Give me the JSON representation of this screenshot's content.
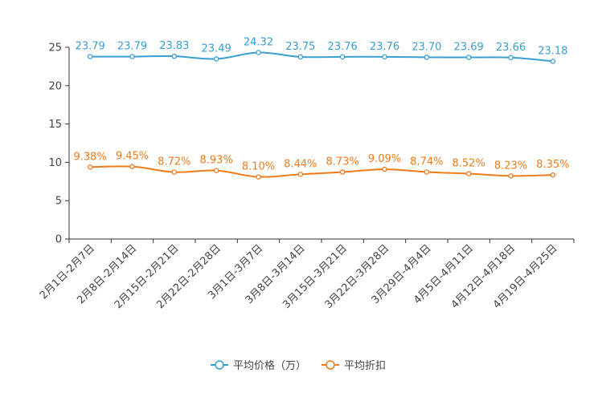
{
  "chart_data": {
    "type": "line",
    "categories": [
      "2月1日-2月7日",
      "2月8日-2月14日",
      "2月15日-2月21日",
      "2月22日-2月28日",
      "3月1日-3月7日",
      "3月8日-3月14日",
      "3月15日-3月21日",
      "3月22日-3月28日",
      "3月29日-4月4日",
      "4月5日-4月11日",
      "4月12日-4月18日",
      "4月19日-4月25日"
    ],
    "series": [
      {
        "name": "平均价格（万）",
        "color": "#3a9fd1",
        "values": [
          23.79,
          23.79,
          23.83,
          23.49,
          24.32,
          23.75,
          23.76,
          23.76,
          23.7,
          23.69,
          23.66,
          23.18
        ],
        "labels": [
          "23.79",
          "23.79",
          "23.83",
          "23.49",
          "24.32",
          "23.75",
          "23.76",
          "23.76",
          "23.70",
          "23.69",
          "23.66",
          "23.18"
        ]
      },
      {
        "name": "平均折扣",
        "color": "#f07b1b",
        "values": [
          9.38,
          9.45,
          8.72,
          8.93,
          8.1,
          8.44,
          8.73,
          9.09,
          8.74,
          8.52,
          8.23,
          8.35
        ],
        "labels": [
          "9.38%",
          "9.45%",
          "8.72%",
          "8.93%",
          "8.10%",
          "8.44%",
          "8.73%",
          "9.09%",
          "8.74%",
          "8.52%",
          "8.23%",
          "8.35%"
        ]
      }
    ],
    "ylim": [
      0,
      25
    ],
    "yticks": [
      "0",
      "5",
      "10",
      "15",
      "20",
      "25"
    ],
    "grid": false,
    "legend_position": "bottom-center"
  }
}
